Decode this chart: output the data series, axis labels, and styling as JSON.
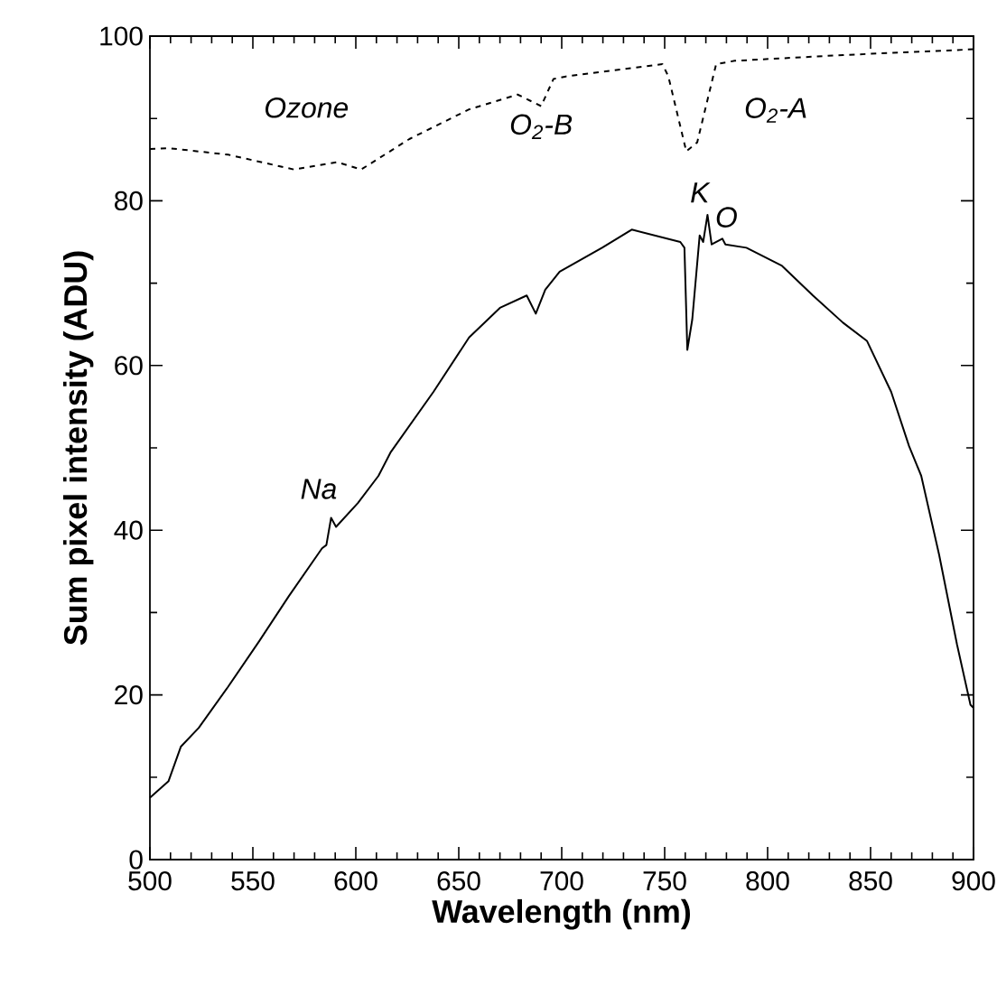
{
  "chart_data": {
    "type": "line",
    "xlabel": "Wavelength (nm)",
    "ylabel": "Sum pixel intensity (ADU)",
    "xlim": [
      500,
      900
    ],
    "ylim": [
      0,
      100
    ],
    "xticks": [
      500,
      550,
      600,
      650,
      700,
      750,
      800,
      850,
      900
    ],
    "yticks": [
      0,
      20,
      40,
      60,
      80,
      100
    ],
    "series": [
      {
        "color": "#000000",
        "line_style": "dashed",
        "x": [
          500,
          509,
          538,
          570,
          591,
          602.6,
          626,
          655,
          678.6,
          690,
          696,
          702,
          748.9,
          751.8,
          760.5,
          765.8,
          775,
          784,
          836.6,
          900
        ],
        "values": [
          86.3,
          86.4,
          85.6,
          83.8,
          84.7,
          83.8,
          87.5,
          91.1,
          92.9,
          91.5,
          94.8,
          95.1,
          96.6,
          95.1,
          86,
          87.1,
          96.6,
          97,
          97.7,
          98.4
        ]
      },
      {
        "color": "#000000",
        "line_style": "solid",
        "x": [
          500,
          509,
          515,
          523.7,
          538,
          553,
          567.5,
          583.6,
          585.7,
          588,
          590.4,
          601,
          611,
          617,
          637.7,
          655,
          670,
          683,
          687.4,
          692,
          699,
          719.6,
          734,
          757.6,
          759.6,
          761,
          763.4,
          767,
          768.7,
          770.8,
          772.8,
          778,
          779.5,
          789.7,
          807,
          822,
          836.6,
          848.2,
          860,
          868.7,
          874.6,
          883.3,
          892,
          898.5,
          900
        ],
        "values": [
          7.5,
          9.5,
          13.7,
          16.0,
          21,
          26.5,
          32,
          37.8,
          38.2,
          41.5,
          40.4,
          43.3,
          46.6,
          49.5,
          56.8,
          63.4,
          67,
          68.5,
          66.3,
          69.2,
          71.4,
          74.3,
          76.5,
          75,
          74.3,
          61.9,
          65.6,
          75.8,
          75,
          78.3,
          74.7,
          75.4,
          74.7,
          74.3,
          72.1,
          68.5,
          65.2,
          63,
          56.8,
          50.2,
          46.6,
          37,
          26.1,
          18.8,
          18.4
        ]
      }
    ],
    "annotations": [
      "Ozone",
      "O$_{2}$-B",
      "O$_{2}$-A",
      "K",
      "O",
      "Na"
    ]
  }
}
